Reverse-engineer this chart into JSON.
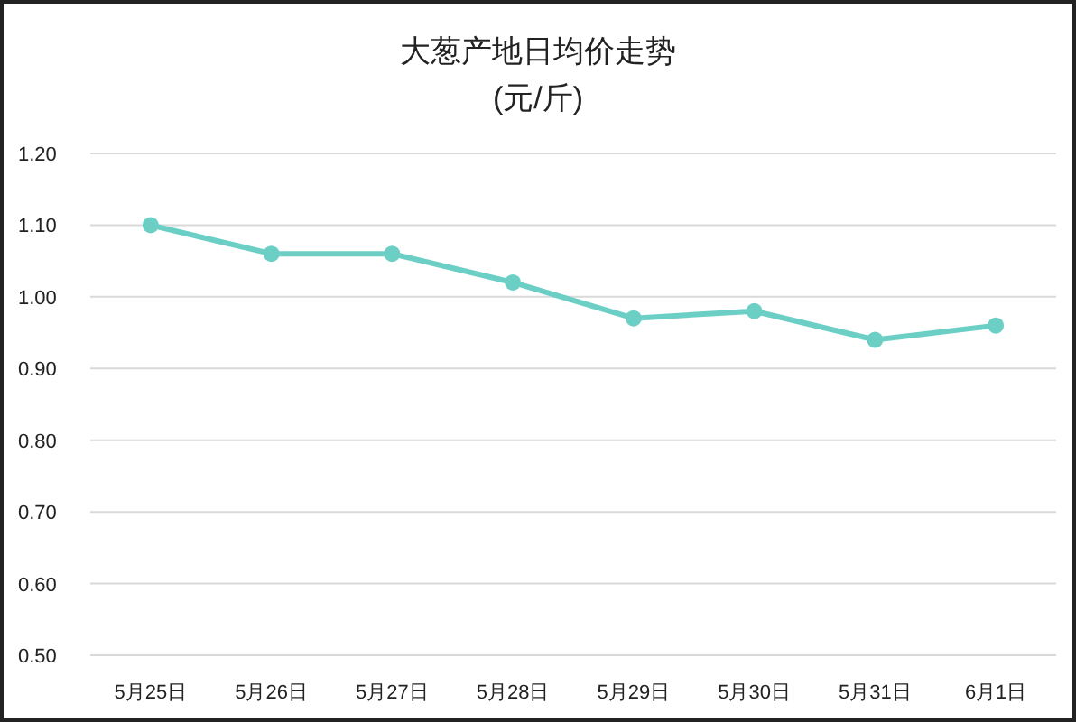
{
  "chart_data": {
    "type": "line",
    "title": "大葱产地日均价走势",
    "subtitle": "(元/斤)",
    "categories": [
      "5月25日",
      "5月26日",
      "5月27日",
      "5月28日",
      "5月29日",
      "5月30日",
      "5月31日",
      "6月1日"
    ],
    "series": [
      {
        "color": "#6ccfc6",
        "values": [
          1.1,
          1.06,
          1.06,
          1.02,
          0.97,
          0.98,
          0.94,
          0.96
        ]
      }
    ],
    "ylim": [
      0.5,
      1.2
    ],
    "yticks": [
      {
        "value": 0.5,
        "label": "0.50"
      },
      {
        "value": 0.6,
        "label": "0.60"
      },
      {
        "value": 0.7,
        "label": "0.70"
      },
      {
        "value": 0.8,
        "label": "0.80"
      },
      {
        "value": 0.9,
        "label": "0.90"
      },
      {
        "value": 1.0,
        "label": "1.00"
      },
      {
        "value": 1.1,
        "label": "1.10"
      },
      {
        "value": 1.2,
        "label": "1.20"
      }
    ],
    "grid": "y",
    "marker": "circle"
  }
}
